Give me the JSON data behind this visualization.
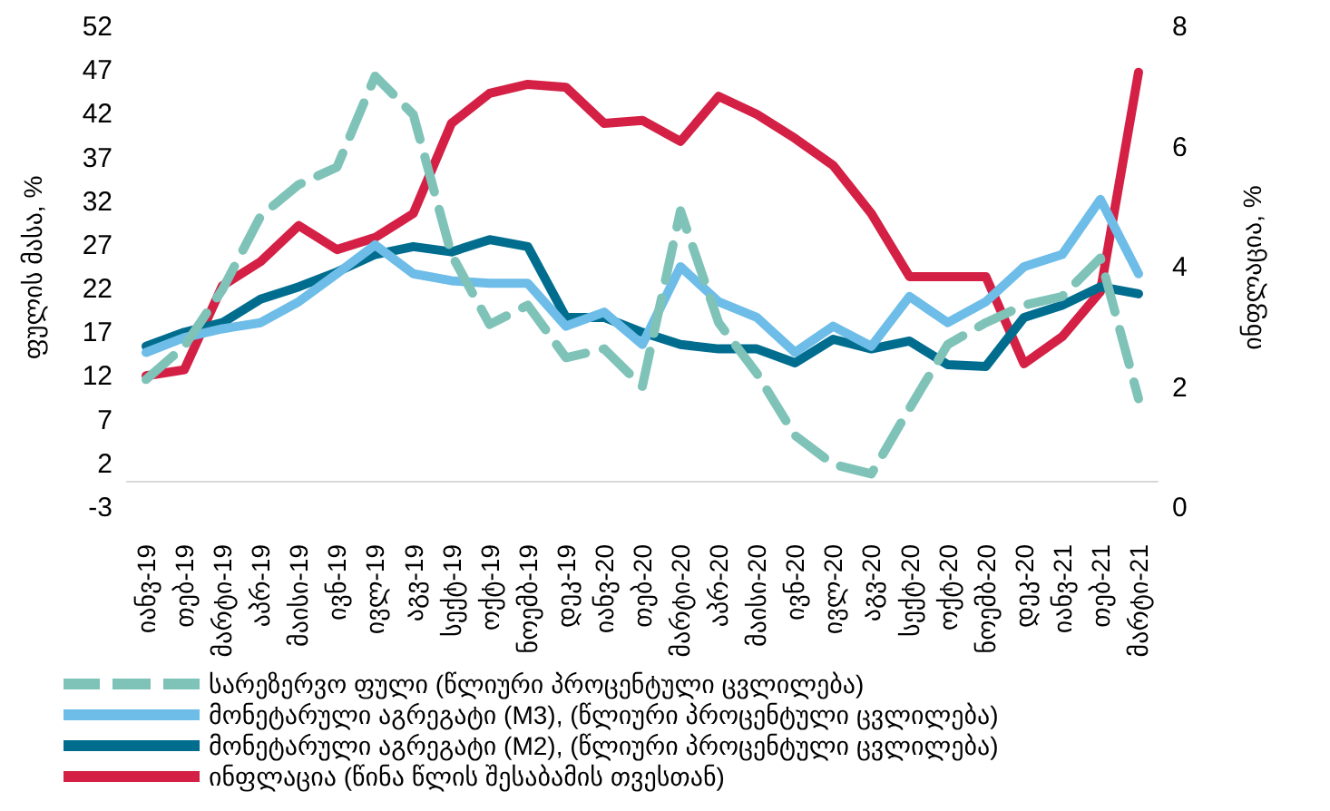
{
  "chart_data": {
    "type": "line",
    "ylabel": "ფულის მასა, %",
    "y2label": "ინფლაცია, %",
    "categories": [
      "იანვ-19",
      "თებ-19",
      "მარტი-19",
      "აპრ-19",
      "მაისი-19",
      "ივნ-19",
      "ივლ-19",
      "აგვ-19",
      "სექტ-19",
      "ოქტ-19",
      "ნოემბ-19",
      "დეკ-19",
      "იანვ-20",
      "თებ-20",
      "მარტი-20",
      "აპრ-20",
      "მაისი-20",
      "ივნ-20",
      "ივლ-20",
      "აგვ-20",
      "სექტ-20",
      "ოქტ-20",
      "ნოემბ-20",
      "დეკ-20",
      "იანვ-21",
      "თებ-21",
      "მარტი-21"
    ],
    "series": [
      {
        "name": "სარეზერვო ფული (წლიური პროცენტული ცვლილება)",
        "color": "#7fc3b8",
        "line_style": "dashed",
        "values": [
          11.7,
          15.5,
          22,
          30.4,
          34,
          36,
          46.4,
          42,
          26,
          18,
          20.2,
          14.2,
          15.2,
          10.9,
          31,
          18.2,
          12.4,
          5.3,
          2,
          0.9,
          8.4,
          15.7,
          18.2,
          20.2,
          21.2,
          25.6,
          9.5
        ]
      },
      {
        "name": "მონეტარული აგრეგატი (M3), (წლიური პროცენტული ცვლილება)",
        "color": "#6dbde8",
        "line_style": "solid",
        "values": [
          14.8,
          16.5,
          17.5,
          18.2,
          20.6,
          23.8,
          27.1,
          23.8,
          23,
          22.7,
          22.7,
          17.8,
          19.4,
          15.7,
          24.6,
          20.6,
          18.8,
          14.8,
          17.8,
          15.5,
          21.2,
          18.2,
          20.6,
          24.6,
          26,
          32.3,
          23.8
        ]
      },
      {
        "name": "მონეტარული აგრეგატი (M2), (წლიური პროცენტული ცვლილება)",
        "color": "#006d8f",
        "line_style": "solid",
        "values": [
          15.5,
          17.1,
          18.2,
          20.9,
          22.3,
          24,
          26,
          26.9,
          26.3,
          27.7,
          26.9,
          18.8,
          18.8,
          17.1,
          15.7,
          15.2,
          15.2,
          13.6,
          16.3,
          15.2,
          16.1,
          13.4,
          13.2,
          18.8,
          20.2,
          22.3,
          21.5
        ]
      },
      {
        "name": "ინფლაცია (წინა წლის შესაბამის თვესთან)",
        "color": "#d42045",
        "line_style": "solid",
        "axis": "y2",
        "values": [
          2.2,
          2.3,
          3.7,
          4.1,
          4.7,
          4.3,
          4.5,
          4.9,
          6.4,
          6.9,
          7.05,
          7.0,
          6.4,
          6.45,
          6.1,
          6.85,
          6.55,
          6.15,
          5.7,
          4.9,
          3.85,
          3.85,
          3.85,
          2.4,
          2.85,
          3.6,
          7.25
        ]
      }
    ],
    "ylim": [
      -3,
      52
    ],
    "yticks": [
      -3,
      2,
      7,
      12,
      17,
      22,
      27,
      32,
      37,
      42,
      47,
      52
    ],
    "y2lim": [
      0,
      8
    ],
    "y2ticks": [
      0,
      2,
      4,
      6,
      8
    ],
    "grid": false,
    "legend": "bottom",
    "marker": "none"
  }
}
